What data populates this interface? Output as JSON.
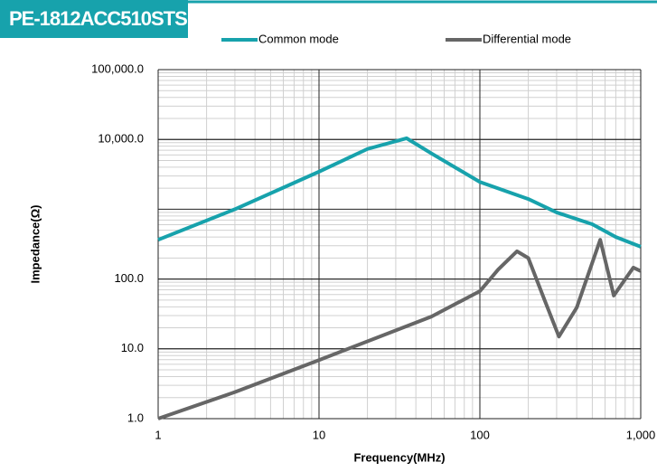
{
  "chart_data": {
    "type": "line",
    "title": "PE-1812ACC510STS",
    "x_label": "Frequency(MHz)",
    "y_label": "Impedance(Ω)",
    "log_x": true,
    "log_y": true,
    "grid": true,
    "legend": "top",
    "xlim": [
      1,
      1000
    ],
    "ylim": [
      1,
      100000
    ],
    "xticks": [
      1,
      10,
      100,
      {
        "value": 1000,
        "label": "1,000"
      }
    ],
    "yticks": [
      {
        "value": 1,
        "label": "1.0"
      },
      {
        "value": 10,
        "label": "10.0"
      },
      {
        "value": 100,
        "label": "100.0"
      },
      {
        "value": 10000,
        "label": "10,000.0"
      },
      {
        "value": 100000,
        "label": "100,000.0"
      }
    ],
    "series": [
      {
        "name": "Common mode",
        "color": "#17a2ac",
        "x": [
          1,
          3,
          10,
          20,
          35,
          50,
          100,
          200,
          300,
          500,
          700,
          1000
        ],
        "values": [
          365,
          1000,
          3450,
          7300,
          10400,
          6300,
          2460,
          1400,
          900,
          610,
          400,
          290
        ]
      },
      {
        "name": "Differential mode",
        "color": "#666666",
        "x": [
          1,
          3,
          10,
          50,
          100,
          130,
          170,
          200,
          250,
          310,
          400,
          560,
          680,
          900,
          1000
        ],
        "values": [
          1,
          2.4,
          6.9,
          29,
          67,
          137,
          250,
          200,
          53,
          15,
          39,
          365,
          58,
          146,
          130
        ]
      }
    ]
  }
}
